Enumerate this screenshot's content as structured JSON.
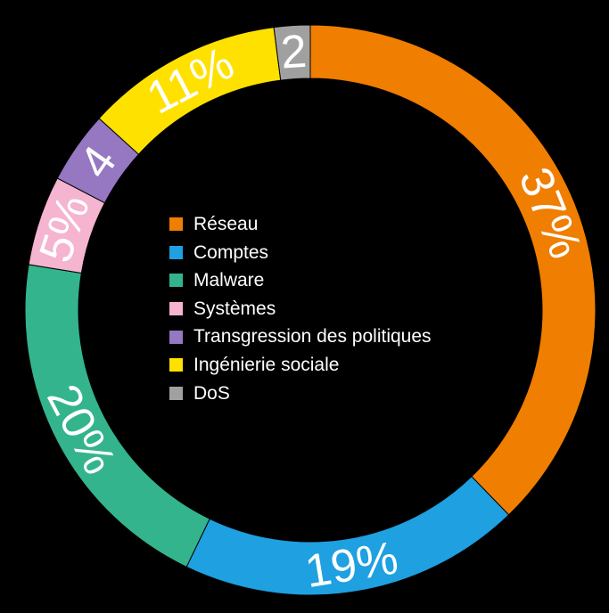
{
  "chart_data": {
    "type": "pie",
    "style": "donut",
    "title": "",
    "legend_position": "center",
    "slices": [
      {
        "name": "Réseau",
        "value": 37,
        "label": "37%",
        "color": "#F07E00"
      },
      {
        "name": "Comptes",
        "value": 19,
        "label": "19%",
        "color": "#1EA0E1"
      },
      {
        "name": "Malware",
        "value": 20,
        "label": "20%",
        "color": "#34B48C"
      },
      {
        "name": "Systèmes",
        "value": 5,
        "label": "5%",
        "color": "#F5B4CF"
      },
      {
        "name": "Transgression des politiques",
        "value": 4,
        "label": "4",
        "color": "#9577C2"
      },
      {
        "name": "Ingénierie sociale",
        "value": 11,
        "label": "11%",
        "color": "#FFE100"
      },
      {
        "name": "DoS",
        "value": 2,
        "label": "2",
        "color": "#A0A0A0"
      }
    ]
  }
}
